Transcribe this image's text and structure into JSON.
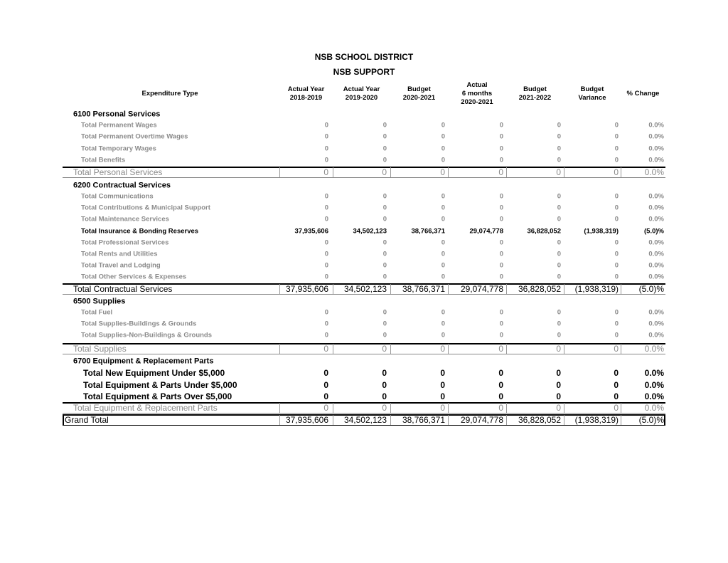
{
  "header": {
    "title": "NSB SCHOOL DISTRICT",
    "subtitle": "NSB SUPPORT"
  },
  "table": {
    "columns": [
      "Expenditure Type",
      "Actual Year\n2018-2019",
      "Actual Year\n2019-2020",
      "Budget\n2020-2021",
      "Actual\n6 months\n2020-2021",
      "Budget\n2021-2022",
      "Budget\nVariance",
      "% Change"
    ],
    "sections": [
      {
        "heading": "6100 Personal Services",
        "items": [
          {
            "label": "Total Permanent Wages",
            "values": [
              "0",
              "0",
              "0",
              "0",
              "0",
              "0",
              "0.0%"
            ]
          },
          {
            "label": "Total Permanent Overtime Wages",
            "values": [
              "0",
              "0",
              "0",
              "0",
              "0",
              "0",
              "0.0%"
            ]
          },
          {
            "label": "Total Temporary Wages",
            "values": [
              "0",
              "0",
              "0",
              "0",
              "0",
              "0",
              "0.0%"
            ]
          },
          {
            "label": "Total Benefits",
            "values": [
              "0",
              "0",
              "0",
              "0",
              "0",
              "0",
              "0.0%"
            ]
          }
        ],
        "total": {
          "label": "Total Personal Services",
          "values": [
            "0",
            "0",
            "0",
            "0",
            "0",
            "0",
            "0.0%"
          ]
        }
      },
      {
        "heading": "6200 Contractual Services",
        "items": [
          {
            "label": "Total Communications",
            "values": [
              "0",
              "0",
              "0",
              "0",
              "0",
              "0",
              "0.0%"
            ]
          },
          {
            "label": "Total Contributions & Municipal Support",
            "values": [
              "0",
              "0",
              "0",
              "0",
              "0",
              "0",
              "0.0%"
            ]
          },
          {
            "label": "Total Maintenance Services",
            "values": [
              "0",
              "0",
              "0",
              "0",
              "0",
              "0",
              "0.0%"
            ]
          },
          {
            "label": "Total Insurance & Bonding Reserves",
            "values": [
              "37,935,606",
              "34,502,123",
              "38,766,371",
              "29,074,778",
              "36,828,052",
              "(1,938,319)",
              "(5.0)%"
            ]
          },
          {
            "label": "Total Professional Services",
            "values": [
              "0",
              "0",
              "0",
              "0",
              "0",
              "0",
              "0.0%"
            ]
          },
          {
            "label": "Total Rents and Utilities",
            "values": [
              "0",
              "0",
              "0",
              "0",
              "0",
              "0",
              "0.0%"
            ]
          },
          {
            "label": "Total Travel and Lodging",
            "values": [
              "0",
              "0",
              "0",
              "0",
              "0",
              "0",
              "0.0%"
            ]
          },
          {
            "label": "Total Other Services & Expenses",
            "values": [
              "0",
              "0",
              "0",
              "0",
              "0",
              "0",
              "0.0%"
            ]
          }
        ],
        "total": {
          "label": "Total Contractual Services",
          "values": [
            "37,935,606",
            "34,502,123",
            "38,766,371",
            "29,074,778",
            "36,828,052",
            "(1,938,319)",
            "(5.0)%"
          ]
        }
      },
      {
        "heading": "6500 Supplies",
        "items": [
          {
            "label": "Total Fuel",
            "values": [
              "0",
              "0",
              "0",
              "0",
              "0",
              "0",
              "0.0%"
            ]
          },
          {
            "label": "Total Supplies-Buildings & Grounds",
            "values": [
              "0",
              "0",
              "0",
              "0",
              "0",
              "0",
              "0.0%"
            ]
          },
          {
            "label": "Total Supplies-Non-Buildings & Grounds",
            "values": [
              "0",
              "0",
              "0",
              "0",
              "0",
              "0",
              "0.0%"
            ]
          }
        ],
        "total": {
          "label": "Total Supplies",
          "values": [
            "0",
            "0",
            "0",
            "0",
            "0",
            "0",
            "0.0%"
          ]
        }
      },
      {
        "heading": "6700 Equipment & Replacement Parts",
        "items": [
          {
            "label": "Total New Equipment Under $5,000",
            "values": [
              "0",
              "0",
              "0",
              "0",
              "0",
              "0",
              "0.0%"
            ]
          },
          {
            "label": "Total Equipment & Parts Under $5,000",
            "values": [
              "0",
              "0",
              "0",
              "0",
              "0",
              "0",
              "0.0%"
            ]
          },
          {
            "label": "Total Equipment & Parts Over $5,000",
            "values": [
              "0",
              "0",
              "0",
              "0",
              "0",
              "0",
              "0.0%"
            ]
          }
        ],
        "total": {
          "label": "Total Equipment & Replacement Parts",
          "values": [
            "0",
            "0",
            "0",
            "0",
            "0",
            "0",
            "0.0%"
          ]
        }
      }
    ],
    "grand_total": {
      "label": "Grand Total",
      "values": [
        "37,935,606",
        "34,502,123",
        "38,766,371",
        "29,074,778",
        "36,828,052",
        "(1,938,319)",
        "(5.0)%"
      ]
    }
  }
}
